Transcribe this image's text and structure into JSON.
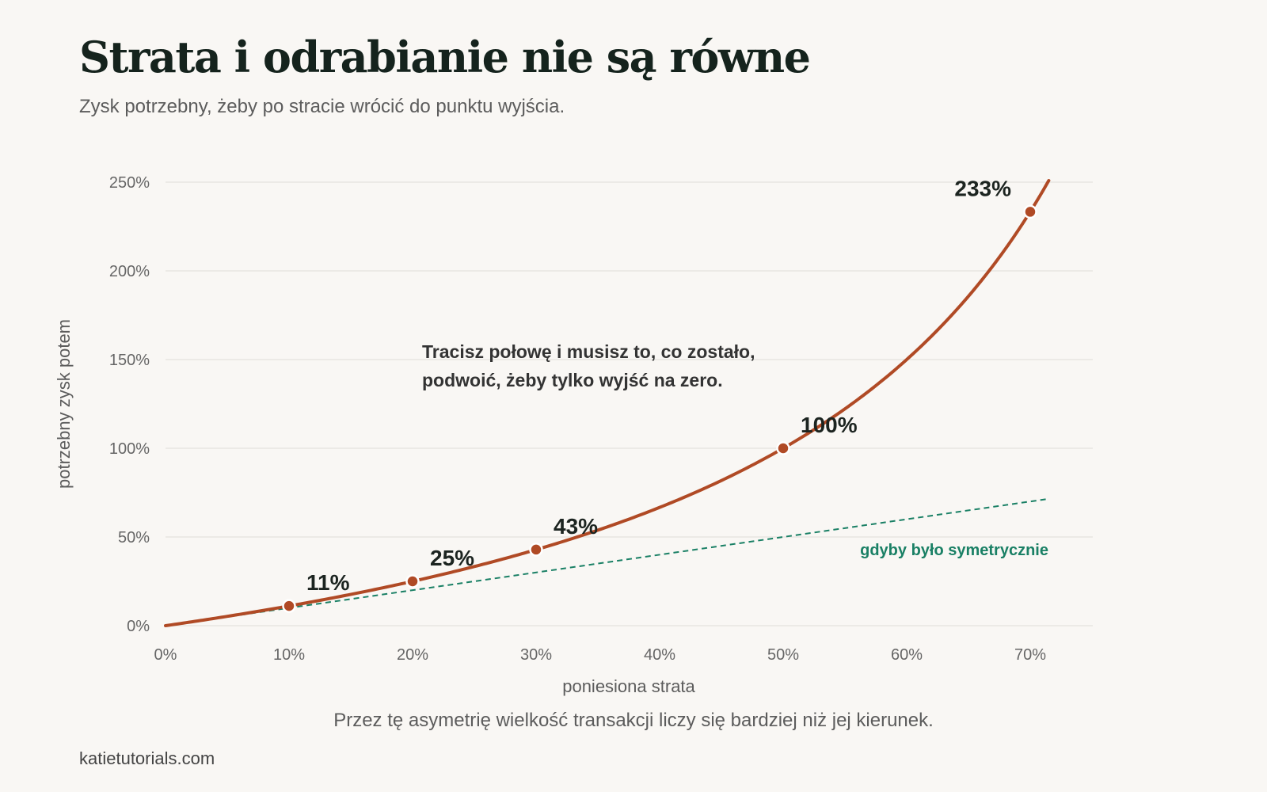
{
  "header": {
    "title": "Strata i odrabianie nie są równe",
    "subtitle": "Zysk potrzebny, żeby po stracie wrócić do punktu wyjścia."
  },
  "footer": {
    "note": "Przez tę asymetrię wielkość transakcji liczy się bardziej niż jej kierunek.",
    "source": "katietutorials.com"
  },
  "colors": {
    "curve": "#b04a25",
    "symmetric": "#1a8065",
    "grid": "#e4e2de",
    "tick": "#666666",
    "label": "#1c2420"
  },
  "chart_data": {
    "type": "line",
    "xlabel": "poniesiona strata",
    "ylabel": "potrzebny zysk potem",
    "xlim": [
      0,
      72
    ],
    "ylim": [
      0,
      250
    ],
    "x_ticks": [
      0,
      10,
      20,
      30,
      40,
      50,
      60,
      70
    ],
    "y_ticks": [
      0,
      50,
      100,
      150,
      200,
      250
    ],
    "x_tick_labels": [
      "0%",
      "10%",
      "20%",
      "30%",
      "40%",
      "50%",
      "60%",
      "70%"
    ],
    "y_tick_labels": [
      "0%",
      "50%",
      "100%",
      "150%",
      "200%",
      "250%"
    ],
    "grid": "horizontal",
    "series": [
      {
        "key": "required",
        "style": "solid",
        "x": [
          0,
          4,
          8,
          12,
          16,
          20,
          24,
          28,
          32,
          36,
          40,
          44,
          48,
          50,
          52,
          56,
          60,
          63,
          66,
          68,
          70,
          71.5
        ],
        "y": [
          0,
          4.2,
          8.7,
          13.6,
          19.0,
          25.0,
          31.6,
          38.9,
          47.1,
          56.3,
          66.7,
          78.6,
          92.3,
          100,
          108.3,
          127.3,
          150,
          170.3,
          194.1,
          212.5,
          233.3,
          250.9
        ]
      },
      {
        "key": "symmetric",
        "name": "gdyby było symetrycznie",
        "style": "dashed",
        "x": [
          0,
          71.5
        ],
        "y": [
          0,
          71.5
        ]
      }
    ],
    "highlighted_points": [
      {
        "x": 10,
        "y": 11.1,
        "label": "11%"
      },
      {
        "x": 20,
        "y": 25,
        "label": "25%"
      },
      {
        "x": 30,
        "y": 42.9,
        "label": "43%"
      },
      {
        "x": 50,
        "y": 100,
        "label": "100%"
      },
      {
        "x": 70,
        "y": 233.3,
        "label": "233%"
      }
    ],
    "annotation": {
      "lines": [
        "Tracisz połowę i musisz to, co zostało,",
        "podwoić, żeby tylko wyjść na zero."
      ]
    }
  }
}
